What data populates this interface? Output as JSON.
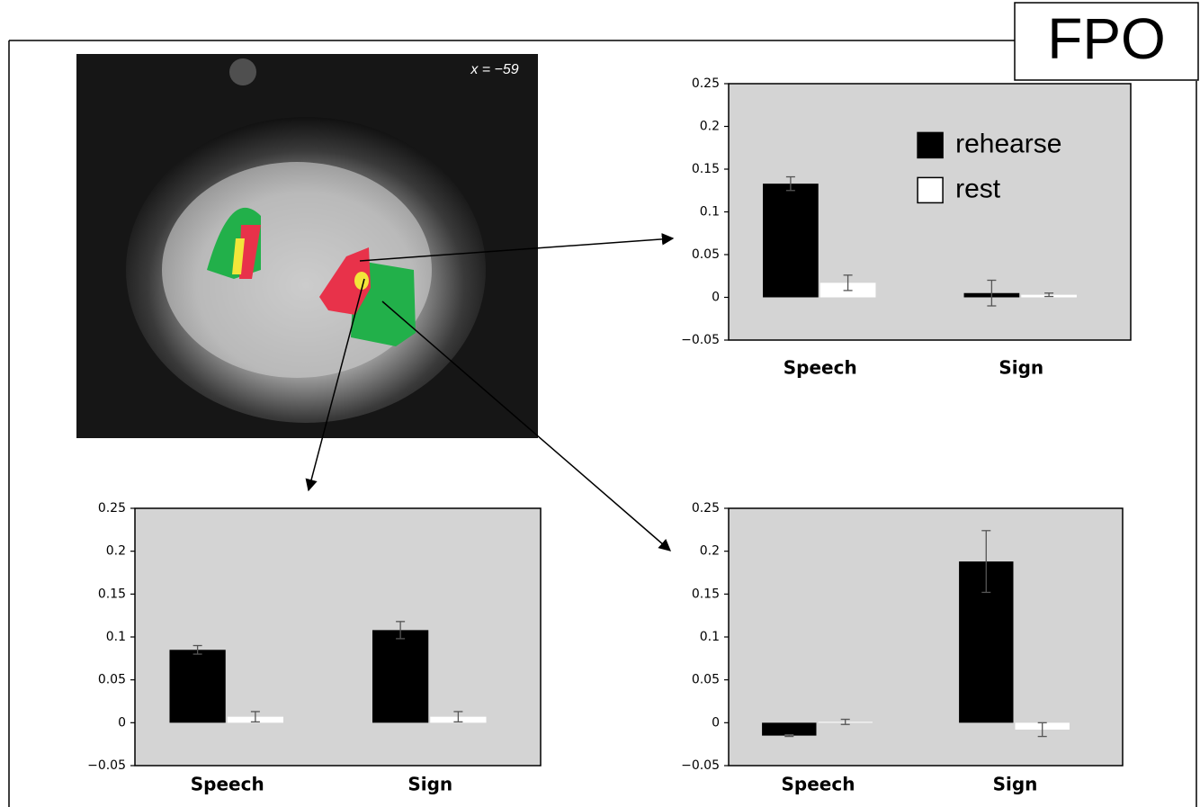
{
  "fpo_label": "FPO",
  "image_label": "x = −59",
  "chart_data": [
    {
      "type": "bar",
      "categories": [
        "Speech",
        "Sign"
      ],
      "series": [
        {
          "name": "rehearse",
          "color": "#000000",
          "values": [
            0.133,
            0.005
          ],
          "errors": [
            0.008,
            0.015
          ]
        },
        {
          "name": "rest",
          "color": "#ffffff",
          "values": [
            0.017,
            0.003
          ],
          "errors": [
            0.009,
            0.002
          ]
        }
      ],
      "ylim": [
        -0.05,
        0.25
      ],
      "yticks": [
        {
          "value": -0.05,
          "label": "−0.05"
        },
        0,
        0.05,
        0.1,
        0.15,
        0.2,
        0.25
      ],
      "legend": "upper right"
    },
    {
      "type": "bar",
      "categories": [
        "Speech",
        "Sign"
      ],
      "series": [
        {
          "color": "#000000",
          "values": [
            0.085,
            0.108
          ],
          "errors": [
            0.005,
            0.01
          ]
        },
        {
          "color": "#ffffff",
          "values": [
            0.007,
            0.007
          ],
          "errors": [
            0.006,
            0.006
          ]
        }
      ],
      "ylim": [
        -0.05,
        0.25
      ],
      "yticks": [
        {
          "value": -0.05,
          "label": "−0.05"
        },
        0,
        0.05,
        0.1,
        0.15,
        0.2,
        0.25
      ]
    },
    {
      "type": "bar",
      "categories": [
        "Speech",
        "Sign"
      ],
      "series": [
        {
          "color": "#000000",
          "values": [
            -0.015,
            0.188
          ],
          "errors": [
            0.001,
            0.036
          ]
        },
        {
          "color": "#ffffff",
          "values": [
            0.001,
            -0.008
          ],
          "errors": [
            0.003,
            0.008
          ]
        }
      ],
      "ylim": [
        -0.05,
        0.25
      ],
      "yticks": [
        {
          "value": -0.05,
          "label": "−0.05"
        },
        0,
        0.05,
        0.1,
        0.15,
        0.2,
        0.25
      ]
    }
  ]
}
